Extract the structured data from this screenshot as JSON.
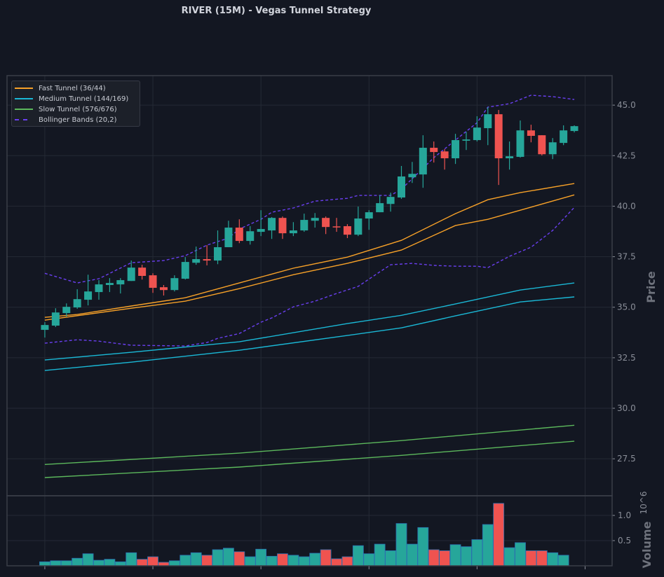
{
  "chart_data": {
    "type": "candlestick",
    "title": "RIVER (15M) - Vegas Tunnel Strategy",
    "ylabel": "Price",
    "volume_ylabel": "Volume",
    "volume_scale_label": "10^6",
    "ylim": [
      25.67,
      46.46
    ],
    "volume_ylim": [
      0,
      1.39
    ],
    "yticks": [
      27.5,
      30.0,
      32.5,
      35.0,
      37.5,
      40.0,
      42.5,
      45.0
    ],
    "ytick_labels": [
      "27.5",
      "30.0",
      "32.5",
      "35.0",
      "37.5",
      "40.0",
      "42.5",
      "45.0"
    ],
    "volume_yticks": [
      0.5,
      1.0
    ],
    "volume_ytick_labels": [
      "0.5",
      "1.0"
    ],
    "xticks": [
      0,
      10,
      20,
      30,
      40,
      50
    ],
    "xlim": [
      -3.5,
      52.5
    ],
    "grid": true,
    "legend_position": "top-left",
    "colors": {
      "up": "#26a69a",
      "down": "#ef5350",
      "fast": "#f7a128",
      "medium": "#1ab8d6",
      "slow": "#5cb85c",
      "bollinger": "#6a3ff0",
      "volume_edge": "#2a6fb0",
      "background": "#131722"
    },
    "legend": [
      {
        "label": "Fast Tunnel (36/44)",
        "style": "solid",
        "color": "#f7a128"
      },
      {
        "label": "Medium Tunnel (144/169)",
        "style": "solid",
        "color": "#1ab8d6"
      },
      {
        "label": "Slow Tunnel (576/676)",
        "style": "solid",
        "color": "#5cb85c"
      },
      {
        "label": "Bollinger Bands (20,2)",
        "style": "dashed",
        "color": "#6a3ff0"
      }
    ],
    "ohlc": [
      [
        33.88,
        34.26,
        33.5,
        34.12
      ],
      [
        34.09,
        34.95,
        34.02,
        34.74
      ],
      [
        34.71,
        35.19,
        34.54,
        35.02
      ],
      [
        34.99,
        35.89,
        34.92,
        35.4
      ],
      [
        35.37,
        36.61,
        35.09,
        35.78
      ],
      [
        35.75,
        36.34,
        35.37,
        36.13
      ],
      [
        36.1,
        36.44,
        35.75,
        36.2
      ],
      [
        36.13,
        36.44,
        35.68,
        36.34
      ],
      [
        36.3,
        37.31,
        36.3,
        36.96
      ],
      [
        36.96,
        37.1,
        36.37,
        36.55
      ],
      [
        36.58,
        36.68,
        35.71,
        35.96
      ],
      [
        35.99,
        36.1,
        35.58,
        35.85
      ],
      [
        35.85,
        36.58,
        35.78,
        36.44
      ],
      [
        36.41,
        37.48,
        36.37,
        37.24
      ],
      [
        37.2,
        38.0,
        37.1,
        37.38
      ],
      [
        37.38,
        38.07,
        37.07,
        37.31
      ],
      [
        37.31,
        38.8,
        37.13,
        37.97
      ],
      [
        37.97,
        39.28,
        37.97,
        38.94
      ],
      [
        38.94,
        39.35,
        38.17,
        38.28
      ],
      [
        38.28,
        39.01,
        38.1,
        38.76
      ],
      [
        38.73,
        39.8,
        38.52,
        38.87
      ],
      [
        38.8,
        39.46,
        38.38,
        39.42
      ],
      [
        39.42,
        39.49,
        38.38,
        38.66
      ],
      [
        38.66,
        39.21,
        38.52,
        38.8
      ],
      [
        38.8,
        39.63,
        38.73,
        39.32
      ],
      [
        39.28,
        39.66,
        38.94,
        39.42
      ],
      [
        39.42,
        39.49,
        38.62,
        38.97
      ],
      [
        39.0,
        39.42,
        38.73,
        38.97
      ],
      [
        39.01,
        39.11,
        38.42,
        38.59
      ],
      [
        38.59,
        39.98,
        38.52,
        39.39
      ],
      [
        39.39,
        39.8,
        38.83,
        39.7
      ],
      [
        39.7,
        40.53,
        39.7,
        40.15
      ],
      [
        40.11,
        40.67,
        39.73,
        40.46
      ],
      [
        40.43,
        41.99,
        40.36,
        41.47
      ],
      [
        41.43,
        42.19,
        41.15,
        41.6
      ],
      [
        41.57,
        43.51,
        40.91,
        42.89
      ],
      [
        42.89,
        43.2,
        42.16,
        42.68
      ],
      [
        42.71,
        42.82,
        41.81,
        42.37
      ],
      [
        42.37,
        43.58,
        42.09,
        43.27
      ],
      [
        43.24,
        43.68,
        42.78,
        43.3
      ],
      [
        43.27,
        44.45,
        43.2,
        43.89
      ],
      [
        43.86,
        44.9,
        43.02,
        44.55
      ],
      [
        44.55,
        44.76,
        41.05,
        42.37
      ],
      [
        42.37,
        43.2,
        41.81,
        42.47
      ],
      [
        42.44,
        44.24,
        42.4,
        43.75
      ],
      [
        43.75,
        44.03,
        43.16,
        43.48
      ],
      [
        43.51,
        43.51,
        42.51,
        42.57
      ],
      [
        42.57,
        43.37,
        42.33,
        43.16
      ],
      [
        43.13,
        44.0,
        43.02,
        43.75
      ],
      [
        43.72,
        44.0,
        43.65,
        43.96
      ]
    ],
    "volume_millions": [
      0.08,
      0.1,
      0.1,
      0.15,
      0.24,
      0.11,
      0.13,
      0.08,
      0.26,
      0.13,
      0.18,
      0.07,
      0.1,
      0.21,
      0.26,
      0.21,
      0.32,
      0.35,
      0.28,
      0.18,
      0.33,
      0.19,
      0.24,
      0.21,
      0.18,
      0.25,
      0.32,
      0.14,
      0.18,
      0.4,
      0.24,
      0.43,
      0.3,
      0.84,
      0.43,
      0.76,
      0.32,
      0.3,
      0.42,
      0.38,
      0.52,
      0.82,
      1.24,
      0.36,
      0.46,
      0.3,
      0.3,
      0.26,
      0.21,
      0.0
    ],
    "lines": {
      "fast_upper": [
        [
          0,
          34.5
        ],
        [
          3,
          34.64
        ],
        [
          8,
          35.06
        ],
        [
          13,
          35.47
        ],
        [
          18,
          36.2
        ],
        [
          23,
          36.93
        ],
        [
          28,
          37.48
        ],
        [
          33,
          38.31
        ],
        [
          38,
          39.63
        ],
        [
          41,
          40.32
        ],
        [
          44,
          40.67
        ],
        [
          49,
          41.12
        ]
      ],
      "fast_lower": [
        [
          0,
          34.36
        ],
        [
          8,
          34.95
        ],
        [
          13,
          35.3
        ],
        [
          18,
          35.92
        ],
        [
          23,
          36.61
        ],
        [
          28,
          37.17
        ],
        [
          33,
          37.83
        ],
        [
          38,
          39.04
        ],
        [
          41,
          39.35
        ],
        [
          44,
          39.8
        ],
        [
          49,
          40.56
        ]
      ],
      "medium_upper": [
        [
          0,
          32.39
        ],
        [
          8,
          32.77
        ],
        [
          18,
          33.29
        ],
        [
          28,
          34.19
        ],
        [
          33,
          34.6
        ],
        [
          38,
          35.16
        ],
        [
          44,
          35.85
        ],
        [
          49,
          36.2
        ]
      ],
      "medium_lower": [
        [
          0,
          31.87
        ],
        [
          8,
          32.28
        ],
        [
          18,
          32.87
        ],
        [
          28,
          33.6
        ],
        [
          33,
          33.98
        ],
        [
          38,
          34.57
        ],
        [
          44,
          35.26
        ],
        [
          49,
          35.51
        ]
      ],
      "slow_upper": [
        [
          0,
          27.22
        ],
        [
          18,
          27.78
        ],
        [
          33,
          28.4
        ],
        [
          49,
          29.16
        ]
      ],
      "slow_lower": [
        [
          0,
          26.57
        ],
        [
          18,
          27.09
        ],
        [
          33,
          27.67
        ],
        [
          49,
          28.37
        ]
      ],
      "bb_upper": [
        [
          0,
          36.68
        ],
        [
          3,
          36.2
        ],
        [
          5,
          36.41
        ],
        [
          8,
          37.2
        ],
        [
          11,
          37.31
        ],
        [
          13,
          37.55
        ],
        [
          15,
          38.07
        ],
        [
          17,
          38.42
        ],
        [
          18,
          38.87
        ],
        [
          20,
          39.35
        ],
        [
          21,
          39.7
        ],
        [
          23,
          39.91
        ],
        [
          25,
          40.25
        ],
        [
          28,
          40.39
        ],
        [
          29,
          40.53
        ],
        [
          32,
          40.53
        ],
        [
          33,
          40.84
        ],
        [
          34,
          41.36
        ],
        [
          36,
          42.4
        ],
        [
          38,
          43.27
        ],
        [
          40,
          44.13
        ],
        [
          41,
          44.9
        ],
        [
          43,
          45.07
        ],
        [
          45,
          45.49
        ],
        [
          47,
          45.42
        ],
        [
          49,
          45.28
        ]
      ],
      "bb_lower": [
        [
          0,
          33.22
        ],
        [
          3,
          33.39
        ],
        [
          5,
          33.32
        ],
        [
          8,
          33.12
        ],
        [
          13,
          33.08
        ],
        [
          15,
          33.25
        ],
        [
          16,
          33.46
        ],
        [
          18,
          33.7
        ],
        [
          20,
          34.26
        ],
        [
          21,
          34.47
        ],
        [
          23,
          35.02
        ],
        [
          25,
          35.3
        ],
        [
          27,
          35.68
        ],
        [
          29,
          36.03
        ],
        [
          31,
          36.75
        ],
        [
          32,
          37.1
        ],
        [
          34,
          37.17
        ],
        [
          36,
          37.07
        ],
        [
          38,
          37.03
        ],
        [
          40,
          37.03
        ],
        [
          41,
          36.96
        ],
        [
          43,
          37.52
        ],
        [
          45,
          37.97
        ],
        [
          47,
          38.8
        ],
        [
          49,
          39.94
        ]
      ]
    }
  }
}
